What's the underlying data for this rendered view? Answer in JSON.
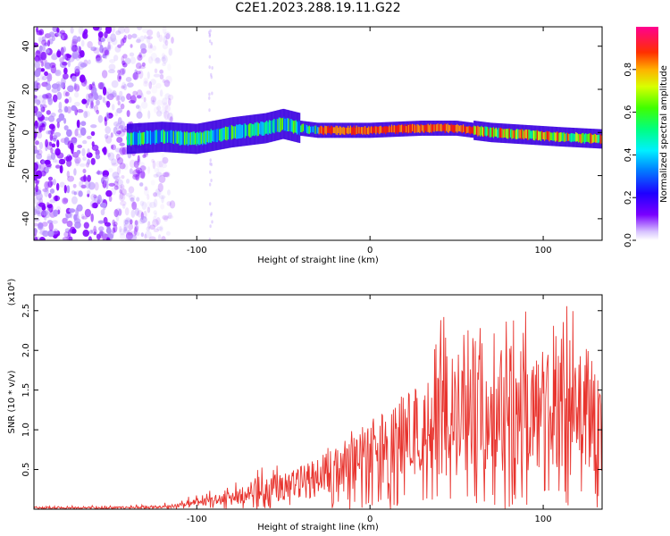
{
  "title": "C2E1.2023.288.19.11.G22",
  "colors": {
    "snr_line": "#e8342e",
    "noise_dot": "#7f00ff",
    "background": "#ffffff"
  },
  "chart_data": [
    {
      "type": "heatmap",
      "xlabel": "Height of straight line (km)",
      "ylabel": "Frequency (Hz)",
      "xlim": [
        -194,
        134
      ],
      "ylim": [
        -50,
        49
      ],
      "xticks": [
        -100,
        0,
        100
      ],
      "yticks": [
        -40,
        -20,
        0,
        20,
        40
      ],
      "colorbar": {
        "label": "Normalized spectral amplitude",
        "range": [
          0,
          1
        ],
        "ticks": [
          "0.0",
          "0.2",
          "0.4",
          "0.6",
          "0.8"
        ],
        "colormap": "rainbow (purple → blue → cyan → green → yellow → orange → red → magenta)"
      },
      "ridge": {
        "x": [
          -140,
          -120,
          -100,
          -80,
          -60,
          -50,
          -40,
          -30,
          0,
          30,
          50,
          70,
          90,
          110,
          134
        ],
        "freq": [
          -3,
          -2,
          -3,
          0,
          2,
          4,
          2,
          1,
          1,
          2,
          2,
          0,
          -1,
          -2,
          -3
        ]
      }
    },
    {
      "type": "line",
      "xlabel": "Height of straight line (km)",
      "ylabel": "SNR (10 * v/v)",
      "ymultiplier": "(x10⁴)",
      "xlim": [
        -194,
        134
      ],
      "ylim": [
        0,
        2.7
      ],
      "xticks": [
        -100,
        0,
        100
      ],
      "yticks": [
        "0.5",
        "1.0",
        "1.5",
        "2.0",
        "2.5"
      ],
      "series": [
        {
          "envelope_x": [
            -194,
            -150,
            -120,
            -100,
            -80,
            -60,
            -40,
            -20,
            0,
            20,
            40,
            60,
            80,
            100,
            120,
            134
          ],
          "envelope_mean": [
            0.02,
            0.02,
            0.03,
            0.08,
            0.15,
            0.25,
            0.35,
            0.55,
            0.75,
            0.95,
            1.1,
            1.2,
            1.3,
            1.3,
            1.2,
            1.1
          ],
          "envelope_peak": [
            0.04,
            0.05,
            0.08,
            0.18,
            0.35,
            0.55,
            0.6,
            0.85,
            0.9,
            1.5,
            2.45,
            2.3,
            2.55,
            2.6,
            2.55,
            1.5
          ]
        }
      ]
    }
  ]
}
